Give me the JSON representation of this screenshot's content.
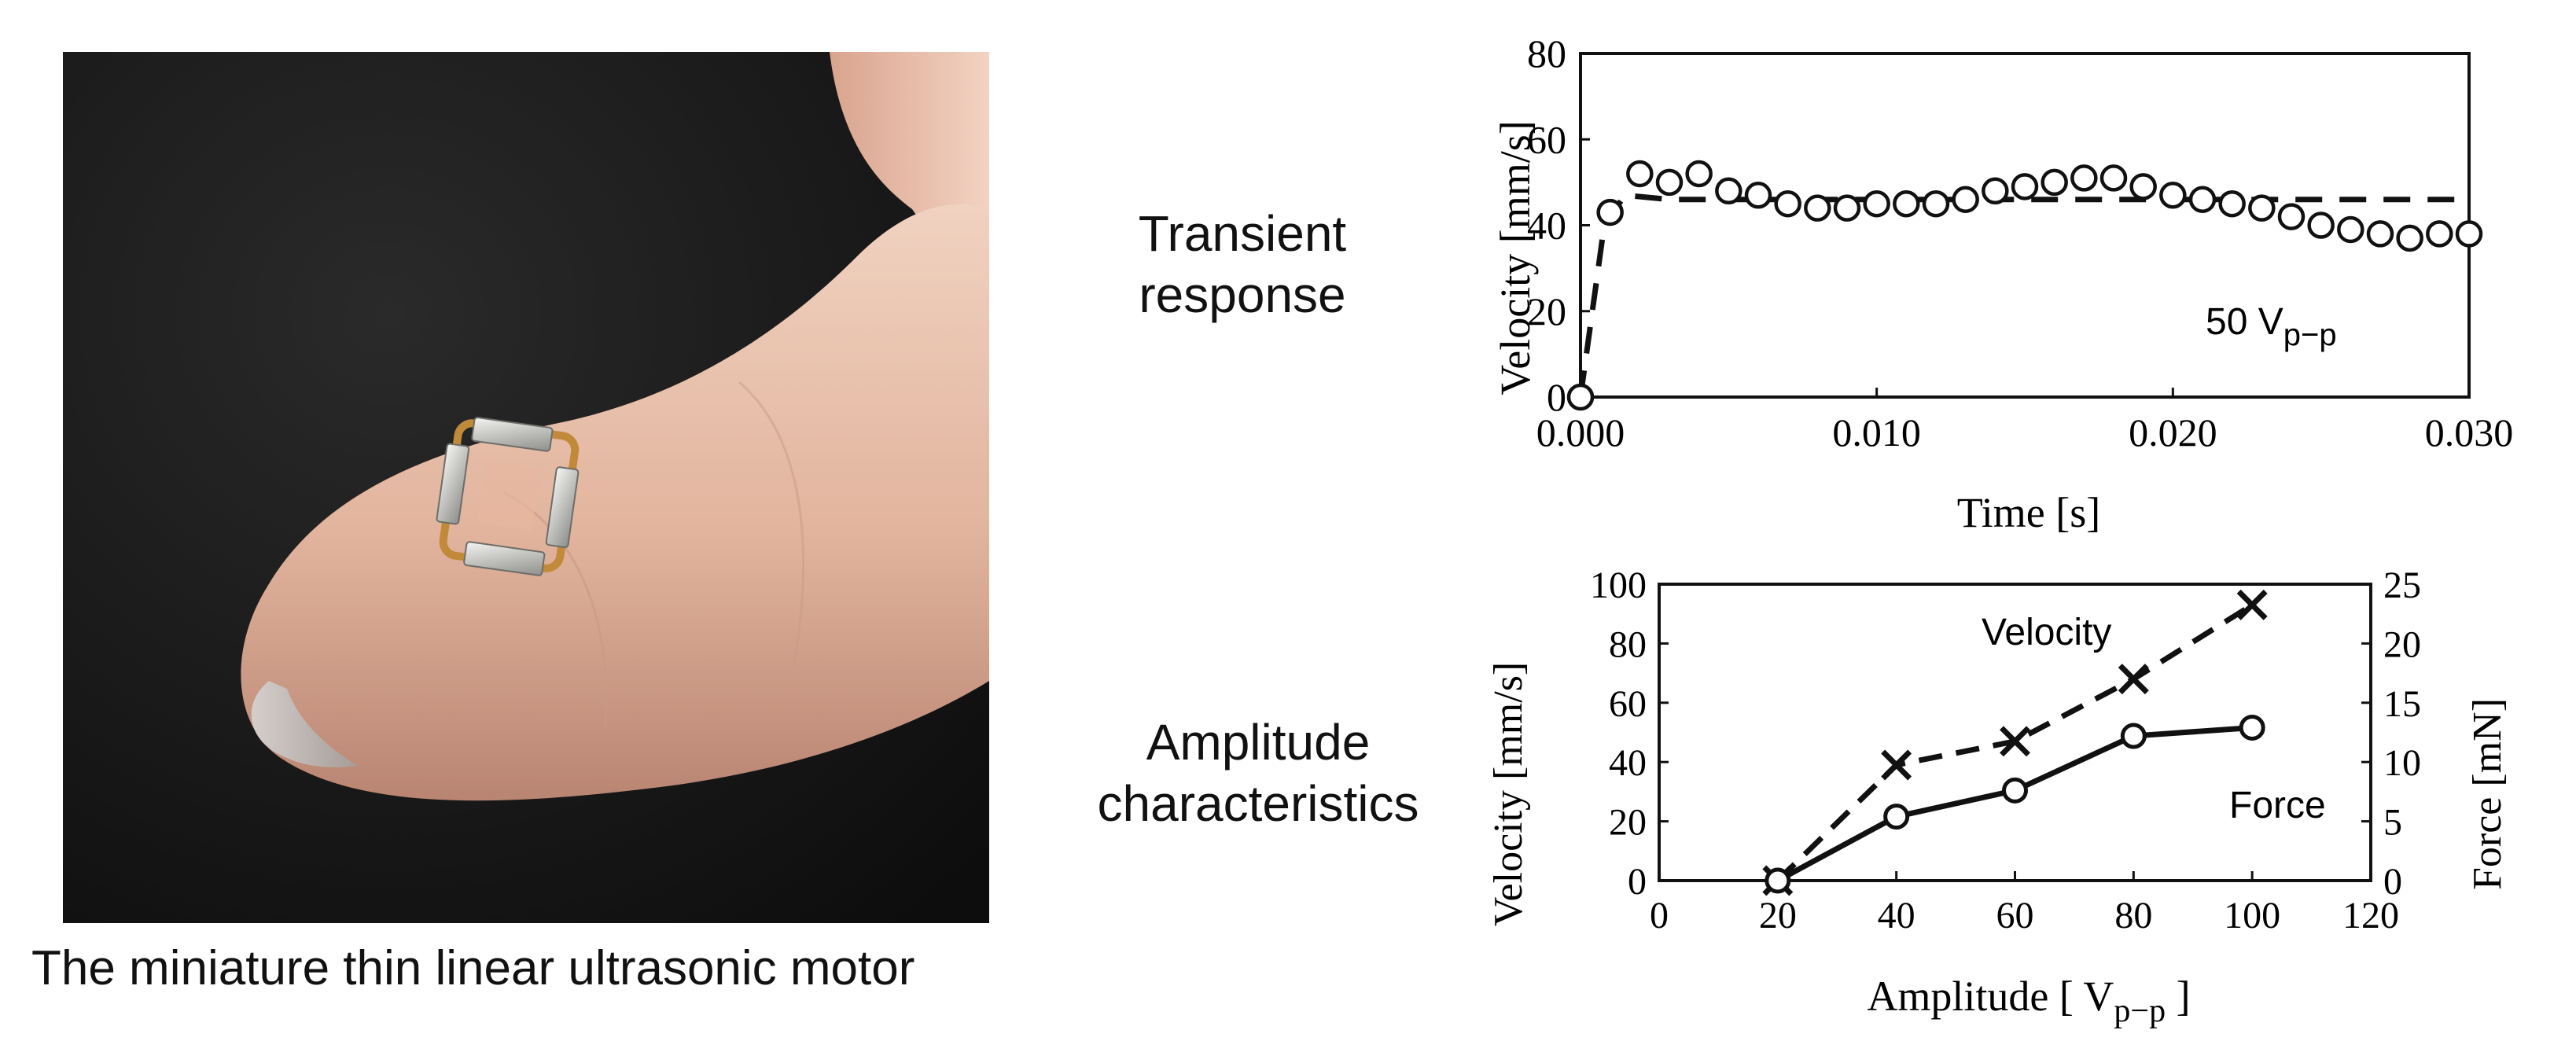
{
  "photo": {
    "caption": "The miniature thin linear ultrasonic motor"
  },
  "labels": {
    "transient_line1": "Transient",
    "transient_line2": "response",
    "amplitude_line1": "Amplitude",
    "amplitude_line2": "characteristics"
  },
  "chart_data": [
    {
      "type": "line",
      "title": "",
      "xlabel": "Time [s]",
      "ylabel": "Velocity [mm/s]",
      "xlim": [
        0.0,
        0.03
      ],
      "ylim": [
        0,
        80
      ],
      "xticks": [
        "0.000",
        "0.010",
        "0.020",
        "0.030"
      ],
      "yticks": [
        "0",
        "20",
        "40",
        "60",
        "80"
      ],
      "annotation": {
        "text": "50 V",
        "sub": "p−p"
      },
      "grid": false,
      "series": [
        {
          "style": "circles",
          "x": [
            0.0,
            0.001,
            0.002,
            0.003,
            0.004,
            0.005,
            0.006,
            0.007,
            0.008,
            0.009,
            0.01,
            0.011,
            0.012,
            0.013,
            0.014,
            0.015,
            0.016,
            0.017,
            0.018,
            0.019,
            0.02,
            0.021,
            0.022,
            0.023,
            0.024,
            0.025,
            0.026,
            0.027,
            0.028,
            0.029,
            0.03
          ],
          "y": [
            0,
            43,
            52,
            50,
            52,
            48,
            47,
            45,
            44,
            44,
            45,
            45,
            45,
            46,
            48,
            49,
            50,
            51,
            51,
            49,
            47,
            46,
            45,
            44,
            42,
            40,
            39,
            38,
            37,
            38,
            38
          ]
        },
        {
          "style": "dashed",
          "x": [
            0.0,
            0.0008,
            0.0015,
            0.003,
            0.008,
            0.015,
            0.02,
            0.025,
            0.03
          ],
          "y": [
            0,
            40,
            47,
            46,
            46,
            46,
            46,
            46,
            46
          ]
        }
      ]
    },
    {
      "type": "line",
      "title": "",
      "xlabel": "Amplitude [ V",
      "xlabel_sub": "p−p",
      "xlabel_end": " ]",
      "ylabel": "Velocity [mm/s]",
      "y2label": "Force [mN]",
      "xlim": [
        0,
        120
      ],
      "ylim": [
        0,
        100
      ],
      "y2lim": [
        0,
        25
      ],
      "xticks": [
        "0",
        "20",
        "40",
        "60",
        "80",
        "100",
        "120"
      ],
      "yticks": [
        "0",
        "20",
        "40",
        "60",
        "80",
        "100"
      ],
      "y2ticks": [
        "0",
        "5",
        "10",
        "15",
        "20",
        "25"
      ],
      "grid": false,
      "series": [
        {
          "name": "Velocity",
          "axis": "left",
          "style": "dashed-cross",
          "x": [
            20,
            40,
            60,
            80,
            100
          ],
          "y": [
            0,
            39,
            47,
            68,
            93
          ]
        },
        {
          "name": "Force",
          "axis": "right",
          "style": "solid-circle",
          "x": [
            20,
            40,
            60,
            80,
            100
          ],
          "y": [
            0,
            5.4,
            7.6,
            12.2,
            12.9
          ]
        }
      ]
    }
  ]
}
